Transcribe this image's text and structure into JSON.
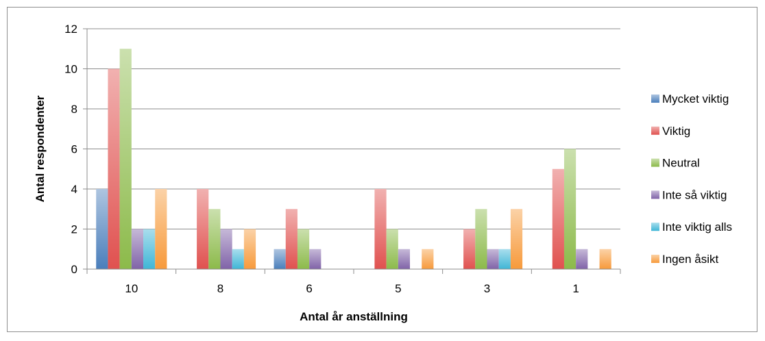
{
  "chart_data": {
    "type": "bar",
    "title": "",
    "xlabel": "Antal år anställning",
    "ylabel": "Antal respondenter",
    "ylim": [
      0,
      12
    ],
    "yticks": [
      "0",
      "2",
      "4",
      "6",
      "8",
      "10",
      "12"
    ],
    "grid": true,
    "legend_position": "right",
    "categories": [
      "10",
      "8",
      "6",
      "5",
      "3",
      "1"
    ],
    "series": [
      {
        "name": "Mycket viktig",
        "color": "#4a7ebb",
        "values": [
          4,
          0,
          1,
          0,
          0,
          0
        ]
      },
      {
        "name": "Viktig",
        "color": "#e0514f",
        "values": [
          10,
          4,
          3,
          4,
          2,
          5
        ]
      },
      {
        "name": "Neutral",
        "color": "#8cba4a",
        "values": [
          11,
          3,
          2,
          2,
          3,
          6
        ]
      },
      {
        "name": "Inte så viktig",
        "color": "#8063a8",
        "values": [
          2,
          2,
          1,
          1,
          1,
          1
        ]
      },
      {
        "name": "Inte viktig alls",
        "color": "#3fb6d6",
        "values": [
          2,
          1,
          0,
          0,
          1,
          0
        ]
      },
      {
        "name": "Ingen åsikt",
        "color": "#f79a3b",
        "values": [
          4,
          2,
          0,
          1,
          3,
          1
        ]
      }
    ]
  }
}
